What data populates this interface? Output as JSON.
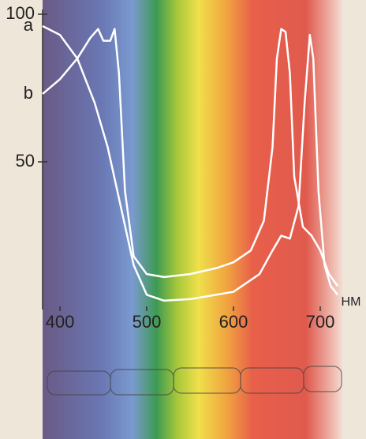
{
  "chart_data": {
    "type": "line",
    "x_label": "НМ",
    "xlim": [
      380,
      720
    ],
    "xticks": [
      400,
      500,
      600,
      700
    ],
    "ylim": [
      0,
      100
    ],
    "yticks": [
      50,
      100
    ],
    "series": [
      {
        "name": "a",
        "color": "#ffffff",
        "x": [
          380,
          400,
          420,
          440,
          455,
          470,
          485,
          500,
          520,
          550,
          600,
          630,
          645,
          655,
          665,
          675,
          682,
          688,
          692,
          698,
          705,
          712,
          720
        ],
        "values": [
          96,
          93,
          85,
          70,
          55,
          35,
          15,
          5,
          3,
          3.5,
          6,
          12,
          20,
          25,
          24,
          35,
          70,
          93,
          85,
          40,
          15,
          8,
          5
        ]
      },
      {
        "name": "b",
        "color": "#ffffff",
        "x": [
          380,
          400,
          420,
          435,
          444,
          450,
          458,
          463,
          468,
          475,
          485,
          500,
          520,
          550,
          580,
          600,
          620,
          635,
          645,
          650,
          655,
          660,
          665,
          670,
          680,
          690,
          700,
          710,
          720
        ],
        "values": [
          73,
          78,
          85,
          92,
          95,
          91,
          91,
          95,
          80,
          40,
          18,
          12,
          11,
          12,
          14,
          16,
          20,
          30,
          55,
          85,
          95,
          94,
          80,
          45,
          28,
          25,
          20,
          12,
          8
        ]
      }
    ]
  }
}
